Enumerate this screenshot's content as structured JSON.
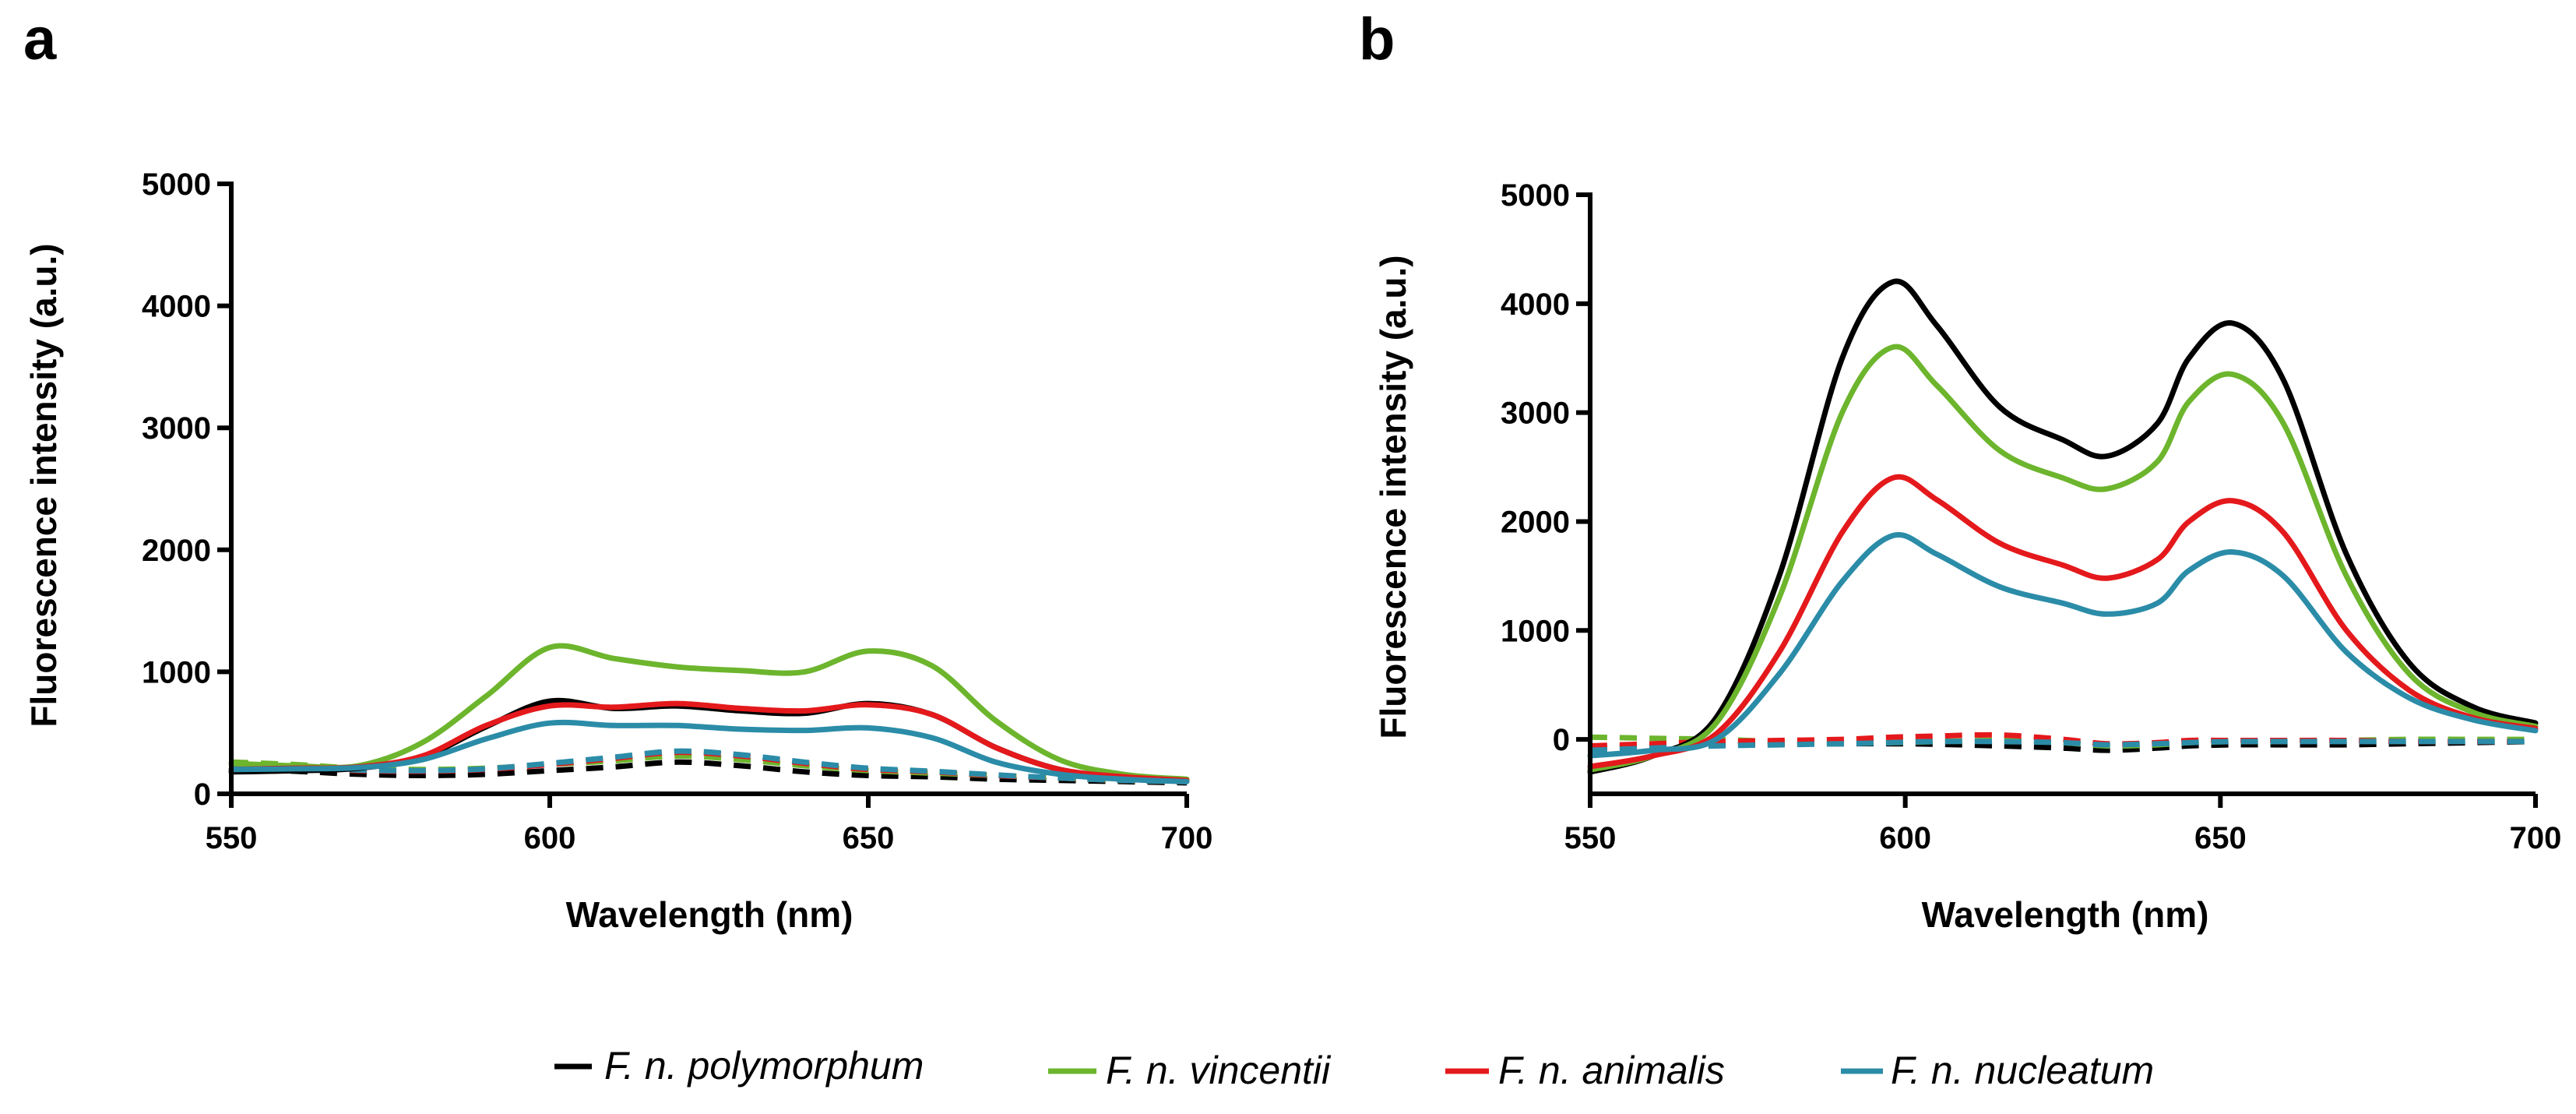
{
  "figure": {
    "legend": [
      {
        "label": "F. n. polymorphum",
        "color": "#000000"
      },
      {
        "label": "F. n. vincentii",
        "color": "#6cb52d"
      },
      {
        "label": "F. n. animalis",
        "color": "#e4191c"
      },
      {
        "label": "F. n. nucleatum",
        "color": "#2b8ca8"
      }
    ]
  },
  "chart_data": [
    {
      "panel": "a",
      "type": "line",
      "title": "",
      "xlabel": "Wavelength (nm)",
      "ylabel": "Fluorescence intensity (a.u.)",
      "xlim": [
        550,
        700
      ],
      "ylim": [
        0,
        5000
      ],
      "xticks": [
        550,
        600,
        650,
        700
      ],
      "yticks": [
        0,
        1000,
        2000,
        3000,
        4000,
        5000
      ],
      "x": [
        550,
        560,
        570,
        580,
        590,
        600,
        610,
        620,
        630,
        640,
        650,
        660,
        670,
        680,
        690,
        700
      ],
      "series": [
        {
          "name": "F. n. polymorphum",
          "color": "#000000",
          "style": "solid",
          "values": [
            180,
            190,
            210,
            300,
            550,
            760,
            700,
            720,
            680,
            660,
            740,
            650,
            380,
            200,
            140,
            110
          ]
        },
        {
          "name": "F. n. vincentii",
          "color": "#6cb52d",
          "style": "solid",
          "values": [
            250,
            230,
            230,
            420,
            800,
            1200,
            1110,
            1040,
            1010,
            1000,
            1170,
            1050,
            600,
            280,
            160,
            120
          ]
        },
        {
          "name": "F. n. animalis",
          "color": "#e4191c",
          "style": "solid",
          "values": [
            200,
            210,
            220,
            310,
            560,
            720,
            710,
            740,
            700,
            680,
            730,
            650,
            380,
            200,
            140,
            110
          ]
        },
        {
          "name": "F. n. nucleatum",
          "color": "#2b8ca8",
          "style": "solid",
          "values": [
            200,
            205,
            215,
            280,
            450,
            580,
            560,
            560,
            530,
            520,
            540,
            460,
            260,
            160,
            120,
            100
          ]
        },
        {
          "name": "F. n. polymorphum",
          "color": "#000000",
          "style": "dashed",
          "values": [
            200,
            185,
            160,
            150,
            160,
            190,
            220,
            260,
            230,
            180,
            150,
            140,
            120,
            110,
            100,
            90
          ]
        },
        {
          "name": "F. n. vincentii",
          "color": "#6cb52d",
          "style": "dashed",
          "values": [
            260,
            240,
            210,
            200,
            210,
            240,
            270,
            310,
            280,
            230,
            190,
            170,
            150,
            130,
            110,
            100
          ]
        },
        {
          "name": "F. n. animalis",
          "color": "#e4191c",
          "style": "dashed",
          "values": [
            220,
            210,
            190,
            185,
            200,
            240,
            290,
            340,
            310,
            250,
            200,
            180,
            150,
            130,
            110,
            100
          ]
        },
        {
          "name": "F. n. nucleatum",
          "color": "#2b8ca8",
          "style": "dashed",
          "values": [
            230,
            215,
            195,
            190,
            205,
            250,
            300,
            350,
            320,
            260,
            210,
            185,
            155,
            130,
            110,
            100
          ]
        }
      ]
    },
    {
      "panel": "b",
      "type": "line",
      "title": "",
      "xlabel": "Wavelength (nm)",
      "ylabel": "Fluorescence intensity (a.u.)",
      "xlim": [
        550,
        700
      ],
      "ylim": [
        -500,
        5000
      ],
      "xticks": [
        550,
        600,
        650,
        700
      ],
      "yticks": [
        0,
        1000,
        2000,
        3000,
        4000,
        5000
      ],
      "x": [
        550,
        560,
        570,
        580,
        590,
        598,
        605,
        615,
        625,
        632,
        640,
        645,
        652,
        660,
        670,
        680,
        690,
        700
      ],
      "series": [
        {
          "name": "F. n. polymorphum",
          "color": "#000000",
          "style": "solid",
          "values": [
            -300,
            -150,
            200,
            1500,
            3500,
            4200,
            3800,
            3050,
            2750,
            2600,
            2900,
            3500,
            3820,
            3300,
            1700,
            700,
            300,
            150
          ]
        },
        {
          "name": "F. n. vincentii",
          "color": "#6cb52d",
          "style": "solid",
          "values": [
            -280,
            -150,
            150,
            1300,
            3000,
            3600,
            3250,
            2650,
            2400,
            2300,
            2550,
            3100,
            3350,
            2900,
            1500,
            600,
            250,
            120
          ]
        },
        {
          "name": "F. n. animalis",
          "color": "#e4191c",
          "style": "solid",
          "values": [
            -250,
            -150,
            50,
            800,
            1900,
            2400,
            2200,
            1800,
            1600,
            1480,
            1650,
            2000,
            2190,
            1900,
            1000,
            450,
            200,
            100
          ]
        },
        {
          "name": "F. n. nucleatum",
          "color": "#2b8ca8",
          "style": "solid",
          "values": [
            -150,
            -100,
            0,
            600,
            1450,
            1870,
            1700,
            1400,
            1250,
            1150,
            1250,
            1550,
            1720,
            1500,
            800,
            380,
            180,
            80
          ]
        },
        {
          "name": "F. n. polymorphum",
          "color": "#000000",
          "style": "dashed",
          "values": [
            -80,
            -60,
            -50,
            -40,
            -40,
            -40,
            -45,
            -60,
            -80,
            -100,
            -80,
            -60,
            -50,
            -50,
            -50,
            -40,
            -30,
            -20
          ]
        },
        {
          "name": "F. n. vincentii",
          "color": "#6cb52d",
          "style": "dashed",
          "values": [
            20,
            10,
            0,
            -20,
            -30,
            -30,
            -20,
            -10,
            -30,
            -60,
            -50,
            -30,
            -20,
            -20,
            -10,
            0,
            0,
            0
          ]
        },
        {
          "name": "F. n. animalis",
          "color": "#e4191c",
          "style": "dashed",
          "values": [
            -60,
            -40,
            -20,
            -10,
            0,
            20,
            30,
            40,
            0,
            -40,
            -30,
            -10,
            -10,
            -10,
            -10,
            -20,
            -20,
            -20
          ]
        },
        {
          "name": "F. n. nucleatum",
          "color": "#2b8ca8",
          "style": "dashed",
          "values": [
            -100,
            -80,
            -60,
            -50,
            -40,
            -30,
            -20,
            -20,
            -30,
            -50,
            -40,
            -30,
            -20,
            -20,
            -20,
            -20,
            -20,
            -20
          ]
        }
      ]
    }
  ]
}
